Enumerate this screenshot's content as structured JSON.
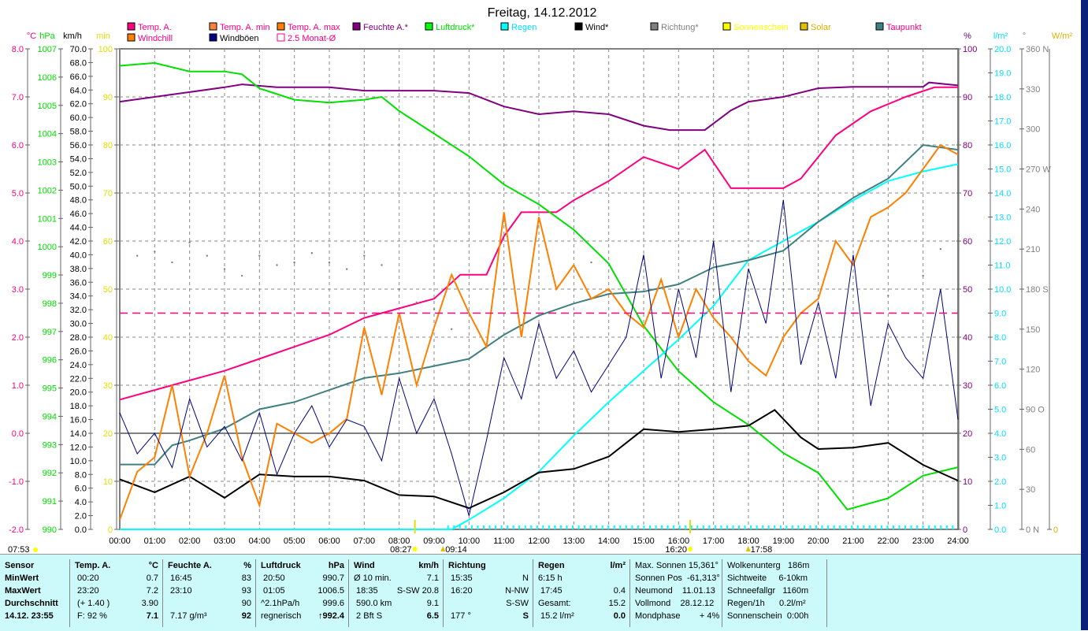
{
  "title": "Freitag, 14.12.2012",
  "legend": [
    {
      "label": "Temp. A.",
      "color": "#ff0080",
      "text": "#ff0080",
      "row": 0,
      "col": 0
    },
    {
      "label": "Temp. A. min",
      "color": "#ff8040",
      "text": "#ff0080",
      "row": 0,
      "col": 1
    },
    {
      "label": "Temp. A. max",
      "color": "#ff8000",
      "text": "#ff0080",
      "row": 0,
      "col": 2
    },
    {
      "label": "Feuchte A.*",
      "color": "#800080",
      "text": "#800080",
      "row": 0,
      "col": 3
    },
    {
      "label": "Luftdruck*",
      "color": "#00ff00",
      "text": "#00e000",
      "row": 0,
      "col": 4
    },
    {
      "label": "Regen",
      "color": "#00ffff",
      "text": "#00e0ff",
      "row": 0,
      "col": 5
    },
    {
      "label": "Wind*",
      "color": "#000000",
      "text": "#000000",
      "row": 0,
      "col": 6
    },
    {
      "label": "Richtung*",
      "color": "#808080",
      "text": "#808080",
      "row": 0,
      "col": 7
    },
    {
      "label": "Sonnenschein",
      "color": "#ffff00",
      "text": "#ffff00",
      "row": 0,
      "col": 8
    },
    {
      "label": "Solar",
      "color": "#e0c000",
      "text": "#e0b000",
      "row": 0,
      "col": 8.7
    },
    {
      "label": "Taupunkt",
      "color": "#408080",
      "text": "#ff0080",
      "row": 0,
      "col": 9.8
    },
    {
      "label": "Windchill",
      "color": "#ff8000",
      "text": "#ff0080",
      "row": 1,
      "col": 0
    },
    {
      "label": "Windböen",
      "color": "#000080",
      "text": "#000000",
      "row": 1,
      "col": 1
    },
    {
      "label": "2.5 Monat-Ø",
      "color": "#ffffff",
      "text": "#ff0080",
      "row": 1,
      "col": 2,
      "outline": "#ff0080"
    }
  ],
  "chart_data": {
    "type": "line",
    "title": "Freitag, 14.12.2012",
    "x_ticks": [
      "00:00",
      "01:00",
      "02:00",
      "03:00",
      "04:00",
      "05:00",
      "06:00",
      "07:00",
      "08:00",
      "09:00",
      "10:00",
      "11:00",
      "12:00",
      "13:00",
      "14:00",
      "15:00",
      "16:00",
      "17:00",
      "18:00",
      "19:00",
      "20:00",
      "21:00",
      "22:00",
      "23:00",
      "24:00"
    ],
    "xlim": [
      0,
      24
    ],
    "axes": {
      "celsius": {
        "unit": "°C",
        "color": "#ff0080",
        "range": [
          -2,
          8
        ],
        "ticks": [
          "8.0",
          "7.0",
          "6.0",
          "5.0",
          "4.0",
          "3.0",
          "2.0",
          "1.0",
          "0.0",
          "-1.0",
          "-2.0"
        ]
      },
      "hpa": {
        "unit": "hPa",
        "color": "#00e000",
        "range": [
          990,
          1007
        ],
        "ticks": [
          "1007",
          "1006",
          "1005",
          "1004",
          "1003",
          "1002",
          "1001",
          "1000",
          "999",
          "998",
          "997",
          "996",
          "995",
          "994",
          "993",
          "992",
          "991",
          "990"
        ]
      },
      "kmh": {
        "unit": "km/h",
        "color": "#000000",
        "range": [
          0,
          70
        ],
        "ticks": [
          "70.0",
          "68.0",
          "66.0",
          "64.0",
          "62.0",
          "60.0",
          "58.0",
          "56.0",
          "54.0",
          "52.0",
          "50.0",
          "48.0",
          "46.0",
          "44.0",
          "42.0",
          "40.0",
          "38.0",
          "36.0",
          "34.0",
          "32.0",
          "30.0",
          "28.0",
          "26.0",
          "24.0",
          "22.0",
          "20.0",
          "18.0",
          "16.0",
          "14.0",
          "12.0",
          "10.0",
          "8.0",
          "6.0",
          "4.0",
          "2.0",
          "0.0"
        ]
      },
      "min": {
        "unit": "min",
        "color": "#e0e000",
        "range": [
          0,
          100
        ],
        "ticks": [
          "100",
          "90",
          "80",
          "70",
          "60",
          "50",
          "40",
          "30",
          "20",
          "10",
          "0"
        ]
      },
      "percent": {
        "unit": "%",
        "color": "#800080",
        "range": [
          0,
          100
        ],
        "ticks": [
          "100",
          "90",
          "80",
          "70",
          "60",
          "50",
          "40",
          "30",
          "20",
          "10",
          "0"
        ]
      },
      "rain": {
        "unit": "l/m²",
        "color": "#00e0ff",
        "range": [
          0,
          20
        ],
        "ticks": [
          "20.0",
          "19.0",
          "18.0",
          "17.0",
          "16.0",
          "15.0",
          "14.0",
          "13.0",
          "12.0",
          "11.0",
          "10.0",
          "9.0",
          "8.0",
          "7.0",
          "6.0",
          "5.0",
          "4.0",
          "3.0",
          "2.0",
          "1.0",
          "0.0"
        ]
      },
      "degrees": {
        "unit": "°",
        "color": "#808080",
        "range": [
          0,
          360
        ],
        "ticks": [
          "360 N",
          "330",
          "300",
          "270 W",
          "240",
          "210",
          "180 S",
          "150",
          "120",
          "90 O",
          "60",
          "30",
          "0 N"
        ]
      },
      "solar": {
        "unit": "W/m²",
        "color": "#e0b000",
        "ticks": [
          "0"
        ]
      }
    },
    "series": [
      {
        "name": "Temp. A.",
        "axis": "celsius",
        "color": "#ff0080",
        "x": [
          0,
          1,
          2,
          3,
          4,
          5,
          6,
          7,
          8,
          9,
          9.75,
          10.5,
          11,
          11.5,
          12.5,
          13,
          14,
          15,
          16,
          16.75,
          17.5,
          18.5,
          19,
          19.5,
          20.5,
          21.5,
          22.5,
          23.33,
          24
        ],
        "y": [
          0.7,
          0.9,
          1.1,
          1.3,
          1.55,
          1.8,
          2.05,
          2.4,
          2.6,
          2.8,
          3.3,
          3.3,
          4.1,
          4.6,
          4.6,
          4.85,
          5.25,
          5.75,
          5.5,
          5.9,
          5.1,
          5.1,
          5.1,
          5.3,
          6.2,
          6.7,
          7.0,
          7.2,
          7.2
        ]
      },
      {
        "name": "Feuchte A.*",
        "axis": "percent",
        "color": "#800080",
        "x": [
          0,
          1,
          2,
          3,
          3.5,
          4.5,
          6,
          7,
          8,
          9,
          10,
          11,
          12,
          13,
          14,
          15,
          15.75,
          16.75,
          17.5,
          18,
          19,
          20,
          21,
          23,
          23.17,
          24
        ],
        "y": [
          89,
          90,
          91,
          92,
          92.6,
          92,
          92,
          91.3,
          91.3,
          91.3,
          90.8,
          88,
          86.4,
          87,
          86.4,
          84,
          83.1,
          83.1,
          87.2,
          89,
          90,
          91.8,
          92.1,
          92.1,
          93,
          92.4
        ]
      },
      {
        "name": "Luftdruck*",
        "axis": "hpa",
        "color": "#00e000",
        "x": [
          0,
          1,
          2,
          3,
          3.5,
          4,
          5,
          6,
          7,
          7.5,
          8,
          9,
          10,
          11,
          12,
          13,
          14,
          15,
          16,
          17,
          18,
          19,
          20,
          20.83,
          22,
          23,
          24
        ],
        "y": [
          1006.4,
          1006.5,
          1006.2,
          1006.2,
          1006.1,
          1005.6,
          1005.2,
          1005.1,
          1005.2,
          1005.3,
          1004.8,
          1004,
          1003.2,
          1002.2,
          1001.5,
          1000.6,
          999.4,
          997.2,
          995.6,
          994.5,
          993.7,
          992.7,
          992,
          990.7,
          991.1,
          991.9,
          992.2
        ]
      },
      {
        "name": "Regen",
        "axis": "rain",
        "color": "#00ffff",
        "x": [
          0,
          9.5,
          10,
          11,
          12,
          13,
          14,
          15,
          16,
          17,
          18,
          19,
          20,
          21,
          22,
          23,
          24
        ],
        "y": [
          0,
          0,
          0.4,
          1.3,
          2.4,
          3.9,
          5.3,
          6.6,
          7.9,
          9.3,
          11.2,
          12.0,
          12.8,
          13.7,
          14.5,
          14.9,
          15.2
        ]
      },
      {
        "name": "Wind*",
        "axis": "kmh",
        "color": "#000000",
        "x": [
          0,
          1,
          2,
          3,
          4,
          5,
          6,
          7,
          8,
          9,
          10,
          11,
          12,
          13,
          14,
          15,
          16,
          17,
          18,
          18.75,
          19.5,
          20,
          21,
          22,
          23,
          24
        ],
        "y": [
          7.3,
          5.4,
          7.7,
          4.6,
          8,
          7.7,
          7.7,
          7.1,
          5,
          4.8,
          3.1,
          5.4,
          8.3,
          8.8,
          10.6,
          14.6,
          14.2,
          14.6,
          15.1,
          17.4,
          13.4,
          11.7,
          11.9,
          12.6,
          9.4,
          7.1
        ]
      },
      {
        "name": "Taupunkt",
        "axis": "celsius",
        "color": "#408080",
        "x": [
          0,
          1,
          1.5,
          2,
          3,
          4,
          5,
          6,
          7,
          8,
          9,
          10,
          11,
          12,
          13,
          14,
          15,
          16,
          17,
          18,
          19,
          20,
          21,
          22,
          23,
          24
        ],
        "y": [
          -0.65,
          -0.65,
          -0.25,
          -0.15,
          0.1,
          0.5,
          0.65,
          0.9,
          1.15,
          1.25,
          1.4,
          1.55,
          2.05,
          2.45,
          2.7,
          2.9,
          2.95,
          3.1,
          3.45,
          3.6,
          3.8,
          4.4,
          4.9,
          5.3,
          6.0,
          5.9
        ]
      },
      {
        "name": "Windchill",
        "axis": "celsius",
        "color": "#ff8000",
        "x": [
          0,
          0.5,
          1,
          1.5,
          2,
          2.5,
          3,
          3.5,
          4,
          4.5,
          5,
          5.5,
          6,
          6.5,
          7,
          7.5,
          8,
          8.5,
          9,
          9.5,
          10,
          10.5,
          11,
          11.5,
          12,
          12.5,
          13,
          13.5,
          14,
          14.5,
          15,
          15.5,
          16,
          16.5,
          17,
          17.5,
          18,
          18.5,
          19,
          19.5,
          20,
          20.5,
          21,
          21.5,
          22,
          22.5,
          23,
          23.5,
          24
        ],
        "y": [
          -1.8,
          -0.8,
          -0.5,
          1.0,
          -0.9,
          0,
          1.2,
          -0.5,
          -1.5,
          0.2,
          0,
          -0.2,
          0,
          0.3,
          2.2,
          0.8,
          2.5,
          1.0,
          2.2,
          3.3,
          2.5,
          1.8,
          4.6,
          2.0,
          4.5,
          3.0,
          3.5,
          2.8,
          3.0,
          2.5,
          2.2,
          3.2,
          2.0,
          3.0,
          2.4,
          2.0,
          1.5,
          1.2,
          2.0,
          2.5,
          2.8,
          4.0,
          3.5,
          4.5,
          4.7,
          5.0,
          5.5,
          6.0,
          5.8
        ]
      },
      {
        "name": "Windböen",
        "axis": "kmh",
        "color": "#000080",
        "x": [
          0,
          0.5,
          1,
          1.5,
          2,
          2.5,
          3,
          3.5,
          4,
          4.5,
          5,
          5.5,
          6,
          6.5,
          7,
          7.5,
          8,
          8.5,
          9,
          9.5,
          10,
          10.5,
          11,
          11.5,
          12,
          12.5,
          13,
          13.5,
          14,
          14.5,
          15,
          15.5,
          16,
          16.5,
          17,
          17.5,
          18,
          18.5,
          19,
          19.5,
          20,
          20.5,
          21,
          21.5,
          22,
          22.5,
          23,
          23.5,
          24
        ],
        "y": [
          17,
          11,
          14,
          9,
          19,
          12,
          15,
          10,
          17,
          8,
          14,
          18,
          12,
          16,
          15,
          10,
          22,
          14,
          19,
          11,
          2,
          13,
          25,
          19,
          30,
          22,
          26,
          20,
          24,
          28,
          40,
          22,
          35,
          25,
          42,
          20,
          38,
          30,
          48,
          24,
          33,
          22,
          40,
          18,
          30,
          25,
          22,
          35,
          16
        ]
      },
      {
        "name": "Richtung*",
        "axis": "degrees",
        "color": "#808080",
        "type": "scatter",
        "x": [
          0,
          0.5,
          1,
          1.5,
          2,
          2.5,
          3,
          3.5,
          4,
          4.5,
          5,
          5.5,
          6,
          6.5,
          7,
          7.5,
          8,
          8.5,
          9,
          9.5,
          13.5,
          16,
          17,
          21,
          22,
          23,
          23.5
        ],
        "y": [
          214,
          205,
          208,
          200,
          215,
          205,
          195,
          190,
          205,
          198,
          200,
          207,
          200,
          195,
          205,
          198,
          180,
          170,
          165,
          150,
          200,
          120,
          170,
          180,
          175,
          190,
          210
        ]
      },
      {
        "name": "2.5 Monat-Ø",
        "axis": "celsius",
        "color": "#ff0080",
        "type": "dashed",
        "x": [
          0,
          24
        ],
        "y": [
          2.5,
          2.5
        ]
      }
    ],
    "sun_markers": [
      {
        "label": "08:27",
        "time": 8.45
      },
      {
        "label": "16:20",
        "time": 16.33
      }
    ],
    "moon_markers": [
      {
        "label": "09:14",
        "time": 9.23
      },
      {
        "label": "17:58",
        "time": 17.97
      }
    ],
    "sunrise_label": "07:53"
  },
  "stats": {
    "columns": [
      {
        "rows": [
          [
            "Sensor",
            ""
          ],
          [
            "MinWert",
            ""
          ],
          [
            "MaxWert",
            ""
          ],
          [
            "Durchschnitt",
            ""
          ],
          [
            "14.12. 23:55",
            ""
          ]
        ],
        "allbold": true
      },
      {
        "rows": [
          [
            "Temp. A.",
            "°C"
          ],
          [
            " 00:20",
            "0.7"
          ],
          [
            " 23:20",
            "7.2"
          ],
          [
            " (+ 1.40 )",
            "3.90"
          ],
          [
            " F: 92 %",
            "7.1"
          ]
        ]
      },
      {
        "rows": [
          [
            "Feuchte A.",
            "%"
          ],
          [
            " 16:45",
            "83"
          ],
          [
            " 23:10",
            "93"
          ],
          [
            "",
            "90"
          ],
          [
            " 7.17 g/m³",
            "92"
          ]
        ]
      },
      {
        "rows": [
          [
            "Luftdruck",
            "hPa"
          ],
          [
            " 20:50",
            "990.7"
          ],
          [
            " 01:05",
            "1006.5"
          ],
          [
            "^2.1hPa/h",
            "999.6"
          ],
          [
            "regnerisch",
            "↑992.4"
          ]
        ]
      },
      {
        "rows": [
          [
            "Wind",
            "km/h"
          ],
          [
            "Ø 10 min.",
            "7.1"
          ],
          [
            " 18:35",
            "S-SW 20.8"
          ],
          [
            " 590.0 km",
            "9.1"
          ],
          [
            " 2 Bft S",
            "6.5"
          ]
        ]
      },
      {
        "rows": [
          [
            "Richtung",
            ""
          ],
          [
            " 15:35",
            "N"
          ],
          [
            " 16:20",
            "N-NW"
          ],
          [
            "",
            "S-SW"
          ],
          [
            " 177 °",
            "S"
          ]
        ]
      },
      {
        "rows": [
          [
            "Regen",
            "l/m²"
          ],
          [
            "6:15 h",
            ""
          ],
          [
            " 17:45",
            "0.4"
          ],
          [
            "Gesamt:",
            "15.2"
          ],
          [
            " 15.2 l/m²",
            "0.0"
          ]
        ]
      },
      {
        "rows": [
          [
            "Max. Sonnen 15,361°",
            ""
          ],
          [
            "Sonnen Pos  -61,313°",
            ""
          ],
          [
            "Neumond    11.01.13",
            ""
          ],
          [
            "Vollmond    28.12.12",
            ""
          ],
          [
            "Mondphase        + 4%",
            ""
          ]
        ],
        "plain": true
      },
      {
        "rows": [
          [
            "Wolkenunterg   186m",
            ""
          ],
          [
            "Sichtweite     6-10km",
            ""
          ],
          [
            "Schneefallgr   1160m",
            ""
          ],
          [
            "Regen/1h      0.2l/m²",
            ""
          ],
          [
            "Sonnenschein  0:00h",
            ""
          ]
        ],
        "plain": true
      }
    ]
  }
}
